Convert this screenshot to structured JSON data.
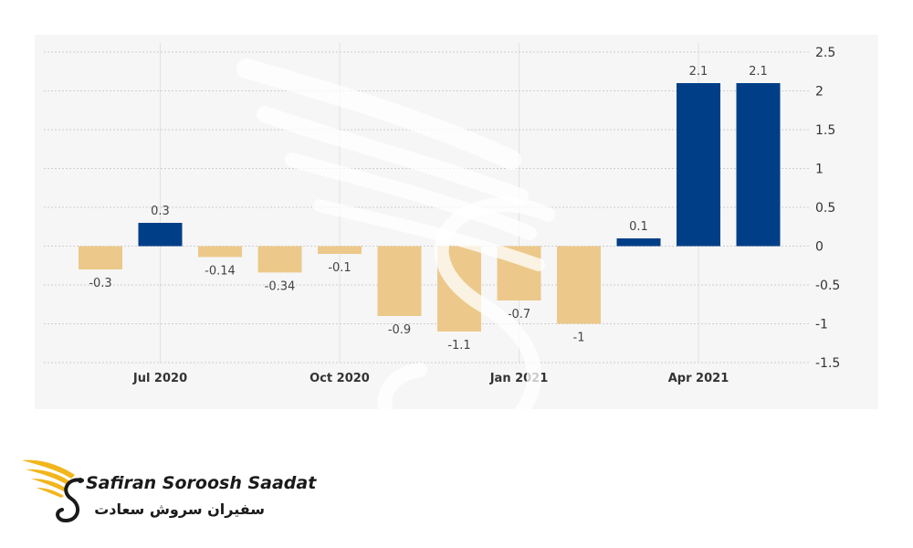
{
  "chart_data": {
    "type": "bar",
    "title": "",
    "xlabel": "",
    "ylabel": "",
    "x_tick_labels": [
      {
        "label": "Jul 2020",
        "at": "2020-07"
      },
      {
        "label": "Oct 2020",
        "at": "2020-10"
      },
      {
        "label": "Jan 2021",
        "at": "2021-01"
      },
      {
        "label": "Apr 2021",
        "at": "2021-04"
      }
    ],
    "y_ticks": [
      {
        "value": 2.5,
        "label": "2.5"
      },
      {
        "value": 2,
        "label": "2"
      },
      {
        "value": 1.5,
        "label": "1.5"
      },
      {
        "value": 1,
        "label": "1"
      },
      {
        "value": 0.5,
        "label": "0.5"
      },
      {
        "value": 0,
        "label": "0"
      },
      {
        "value": -0.5,
        "label": "-0.5"
      },
      {
        "value": -1,
        "label": "-1"
      },
      {
        "value": -1.5,
        "label": "-1.5"
      }
    ],
    "ylim": [
      -1.5,
      2.5
    ],
    "y_axis_position": "right",
    "grid": true,
    "legend": "none",
    "points": [
      {
        "month": "2020-06",
        "value": -0.3,
        "label": "-0.3"
      },
      {
        "month": "2020-07",
        "value": 0.3,
        "label": "0.3"
      },
      {
        "month": "2020-08",
        "value": -0.14,
        "label": "-0.14"
      },
      {
        "month": "2020-09",
        "value": -0.34,
        "label": "-0.34"
      },
      {
        "month": "2020-10",
        "value": -0.1,
        "label": "-0.1"
      },
      {
        "month": "2020-11",
        "value": -0.9,
        "label": "-0.9"
      },
      {
        "month": "2020-12",
        "value": -1.1,
        "label": "-1.1"
      },
      {
        "month": "2021-01",
        "value": -0.7,
        "label": "-0.7"
      },
      {
        "month": "2021-02",
        "value": -1,
        "label": "-1"
      },
      {
        "month": "2021-03",
        "value": 0.1,
        "label": "0.1"
      },
      {
        "month": "2021-04",
        "value": 2.1,
        "label": "2.1"
      },
      {
        "month": "2021-05",
        "value": 2.1,
        "label": "2.1"
      }
    ],
    "colors": {
      "positive": "#003f87",
      "negative": "#ecc98a"
    }
  },
  "logo": {
    "text_en": "Safiran Soroosh Saadat",
    "text_fa": "سفیران سروش سعادت",
    "colors": {
      "gold": "#f2b51c",
      "dark": "#1a1a1a"
    }
  }
}
